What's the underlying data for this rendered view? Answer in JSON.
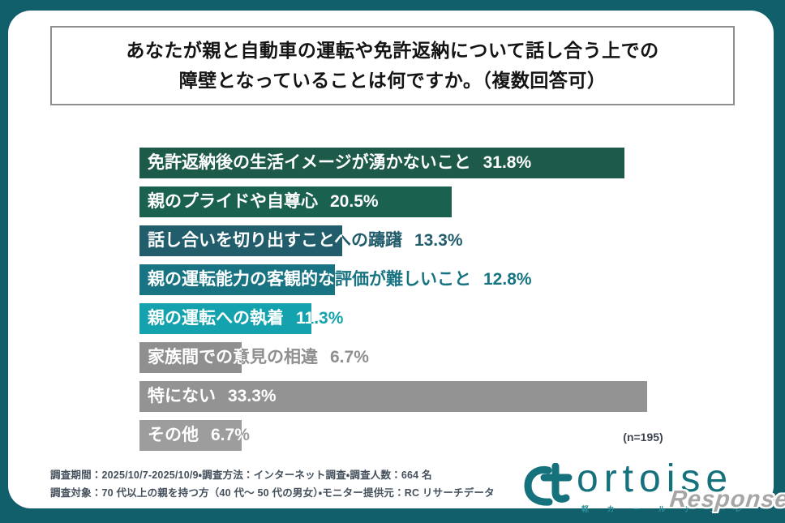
{
  "background_color": "#115F6A",
  "title": {
    "line1": "あなたが親と自動車の運転や免許返納について話し合う上での",
    "line2": "障壁となっていることは何ですか。（複数回答可）"
  },
  "chart_data": {
    "type": "bar",
    "orientation": "horizontal",
    "unit": "%",
    "xlim": [
      0,
      35
    ],
    "grid": false,
    "legend": "none",
    "categories": [
      "免許返納後の生活イメージが湧かないこと",
      "親のプライドや自尊心",
      "話し合いを切り出すことへの躊躇",
      "親の運転能力の客観的な評価が難しいこと",
      "親の運転への執着",
      "家族間での意見の相違",
      "特にない",
      "その他"
    ],
    "values": [
      31.8,
      20.5,
      13.3,
      12.8,
      11.3,
      6.7,
      33.3,
      6.7
    ],
    "value_labels": [
      "31.8%",
      "20.5%",
      "13.3%",
      "12.8%",
      "11.3%",
      "6.7%",
      "33.3%",
      "6.7%"
    ],
    "colors": [
      "#1E5A4A",
      "#1A6150",
      "#225D6C",
      "#187482",
      "#14A3AE",
      "#8F8F8F",
      "#939393",
      "#9D9D9D"
    ],
    "sample_note": "(n=195)"
  },
  "footer": {
    "line1": "調査期間：2025/10/7-2025/10/9・調査方法：インターネット調査・調査人数：664 名",
    "line2": "調査対象：70 代以上の親を持つ方（40 代～ 50 代の男女）・モニター提供元：RC リサーチデータ"
  },
  "logo": {
    "text": "ortoise",
    "tagline": "軽 カ ー ル デ コ レ",
    "color": "#15717B"
  },
  "watermark": {
    "text": "Response."
  }
}
